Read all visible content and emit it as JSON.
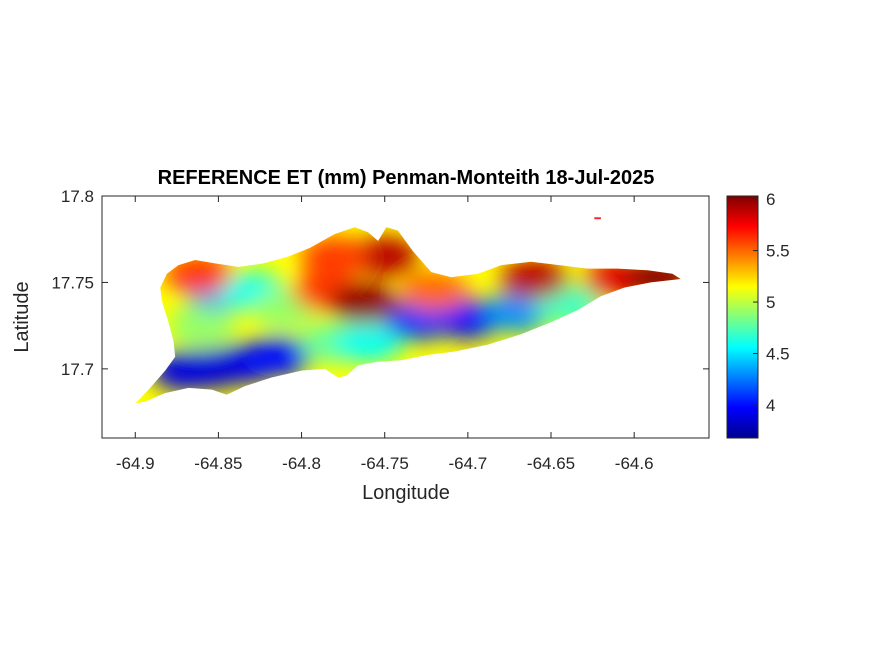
{
  "figure": {
    "title": "REFERENCE ET (mm) Penman-Monteith 18-Jul-2025",
    "xlabel": "Longitude",
    "ylabel": "Latitude"
  },
  "map": {
    "xlim": [
      -64.92,
      -64.555
    ],
    "ylim": [
      17.66,
      17.8
    ],
    "x_ticks": [
      "-64.9",
      "-64.85",
      "-64.8",
      "-64.75",
      "-64.7",
      "-64.65",
      "-64.6"
    ],
    "x_tick_values": [
      -64.9,
      -64.85,
      -64.8,
      -64.75,
      -64.7,
      -64.65,
      -64.6
    ],
    "y_ticks": [
      "17.7",
      "17.75",
      "17.8"
    ],
    "y_tick_values": [
      17.7,
      17.75,
      17.8
    ],
    "outline_lonlat": [
      [
        -64.9,
        17.68
      ],
      [
        -64.892,
        17.688
      ],
      [
        -64.882,
        17.699
      ],
      [
        -64.876,
        17.707
      ],
      [
        -64.877,
        17.716
      ],
      [
        -64.88,
        17.727
      ],
      [
        -64.884,
        17.739
      ],
      [
        -64.885,
        17.747
      ],
      [
        -64.881,
        17.755
      ],
      [
        -64.874,
        17.76
      ],
      [
        -64.864,
        17.763
      ],
      [
        -64.852,
        17.761
      ],
      [
        -64.838,
        17.759
      ],
      [
        -64.823,
        17.761
      ],
      [
        -64.808,
        17.765
      ],
      [
        -64.795,
        17.77
      ],
      [
        -64.78,
        17.778
      ],
      [
        -64.768,
        17.782
      ],
      [
        -64.76,
        17.779
      ],
      [
        -64.754,
        17.774
      ],
      [
        -64.749,
        17.782
      ],
      [
        -64.742,
        17.78
      ],
      [
        -64.733,
        17.768
      ],
      [
        -64.722,
        17.756
      ],
      [
        -64.71,
        17.753
      ],
      [
        -64.694,
        17.755
      ],
      [
        -64.68,
        17.76
      ],
      [
        -64.662,
        17.762
      ],
      [
        -64.645,
        17.76
      ],
      [
        -64.628,
        17.758
      ],
      [
        -64.61,
        17.758
      ],
      [
        -64.592,
        17.757
      ],
      [
        -64.577,
        17.755
      ],
      [
        -64.572,
        17.752
      ],
      [
        -64.59,
        17.75
      ],
      [
        -64.606,
        17.747
      ],
      [
        -64.62,
        17.742
      ],
      [
        -64.634,
        17.734
      ],
      [
        -64.65,
        17.727
      ],
      [
        -64.668,
        17.72
      ],
      [
        -64.688,
        17.714
      ],
      [
        -64.708,
        17.71
      ],
      [
        -64.724,
        17.708
      ],
      [
        -64.74,
        17.705
      ],
      [
        -64.755,
        17.704
      ],
      [
        -64.766,
        17.702
      ],
      [
        -64.773,
        17.696
      ],
      [
        -64.778,
        17.695
      ],
      [
        -64.786,
        17.7
      ],
      [
        -64.8,
        17.699
      ],
      [
        -64.818,
        17.695
      ],
      [
        -64.834,
        17.69
      ],
      [
        -64.845,
        17.685
      ],
      [
        -64.854,
        17.688
      ],
      [
        -64.868,
        17.689
      ],
      [
        -64.882,
        17.686
      ],
      [
        -64.894,
        17.681
      ]
    ],
    "islet_lonlat": [
      [
        -64.624,
        17.7877
      ],
      [
        -64.62,
        17.7877
      ],
      [
        -64.62,
        17.7866
      ],
      [
        -64.624,
        17.7866
      ]
    ]
  },
  "colorbar": {
    "colormap": "jet",
    "range": [
      3.68,
      6.03
    ],
    "ticks": [
      "4",
      "4.5",
      "5",
      "5.5",
      "6"
    ],
    "tick_values": [
      4,
      4.5,
      5,
      5.5,
      6
    ],
    "stops": [
      "#00008f",
      "#0000ff",
      "#00ffff",
      "#ffff00",
      "#ff0000",
      "#800000"
    ]
  },
  "chart_data": {
    "type": "heatmap",
    "title": "REFERENCE ET (mm) Penman-Monteith 18-Jul-2025",
    "xlabel": "Longitude",
    "ylabel": "Latitude",
    "xlim": [
      -64.92,
      -64.555
    ],
    "ylim": [
      17.66,
      17.8
    ],
    "grid": false,
    "colorbar_label": "",
    "value_range": [
      3.68,
      6.03
    ],
    "value_samples": [
      {
        "lon": -64.855,
        "lat": 17.7,
        "value": 3.8
      },
      {
        "lon": -64.87,
        "lat": 17.699,
        "value": 3.9
      },
      {
        "lon": -64.835,
        "lat": 17.703,
        "value": 3.9
      },
      {
        "lon": -64.815,
        "lat": 17.707,
        "value": 4.0
      },
      {
        "lon": -64.85,
        "lat": 17.745,
        "value": 4.3
      },
      {
        "lon": -64.83,
        "lat": 17.745,
        "value": 4.6
      },
      {
        "lon": -64.86,
        "lat": 17.725,
        "value": 4.9
      },
      {
        "lon": -64.81,
        "lat": 17.735,
        "value": 4.9
      },
      {
        "lon": -64.78,
        "lat": 17.715,
        "value": 4.8
      },
      {
        "lon": -64.76,
        "lat": 17.715,
        "value": 4.6
      },
      {
        "lon": -64.73,
        "lat": 17.728,
        "value": 4.1
      },
      {
        "lon": -64.7,
        "lat": 17.729,
        "value": 4.0
      },
      {
        "lon": -64.67,
        "lat": 17.733,
        "value": 4.3
      },
      {
        "lon": -64.64,
        "lat": 17.737,
        "value": 4.7
      },
      {
        "lon": -64.785,
        "lat": 17.745,
        "value": 5.6
      },
      {
        "lon": -64.763,
        "lat": 17.738,
        "value": 6.0
      },
      {
        "lon": -64.75,
        "lat": 17.765,
        "value": 5.9
      },
      {
        "lon": -64.78,
        "lat": 17.765,
        "value": 5.6
      },
      {
        "lon": -64.862,
        "lat": 17.755,
        "value": 5.6
      },
      {
        "lon": -64.72,
        "lat": 17.745,
        "value": 5.5
      },
      {
        "lon": -64.66,
        "lat": 17.752,
        "value": 5.9
      },
      {
        "lon": -64.61,
        "lat": 17.752,
        "value": 5.8
      },
      {
        "lon": -64.585,
        "lat": 17.753,
        "value": 6.0
      }
    ]
  }
}
